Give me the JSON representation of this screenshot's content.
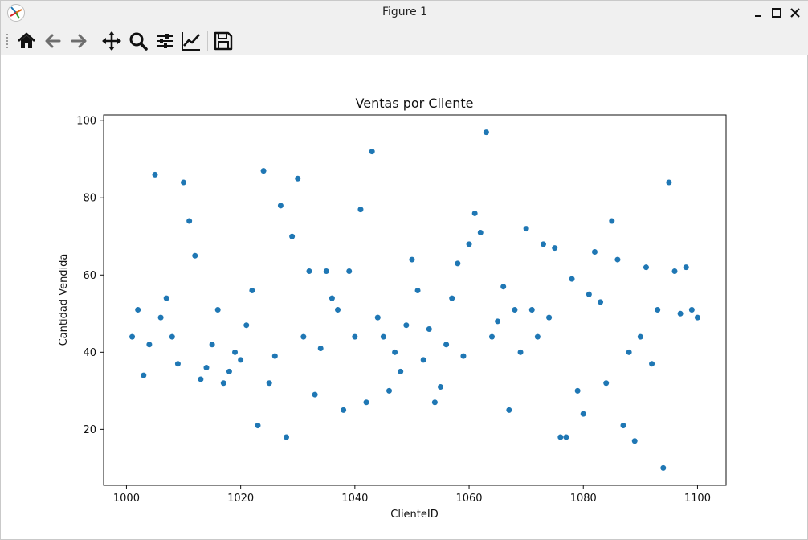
{
  "window": {
    "title": "Figure 1"
  },
  "toolbar": {
    "tools": [
      "home-icon",
      "back-arrow-icon",
      "forward-arrow-icon",
      "pan-move-icon",
      "zoom-magnifier-icon",
      "subplots-sliders-icon",
      "edit-axes-lines-icon",
      "save-floppy-icon"
    ]
  },
  "colors": {
    "point": "#1f77b4",
    "toolbar_bg": "#f0f0f0"
  },
  "chart_data": {
    "type": "scatter",
    "title": "Ventas por Cliente",
    "xlabel": "ClienteID",
    "ylabel": "Cantidad Vendida",
    "xlim": [
      996,
      1105
    ],
    "ylim": [
      5.5,
      101.5
    ],
    "xticks": [
      "1000",
      "1020",
      "1040",
      "1060",
      "1080",
      "1100"
    ],
    "yticks": [
      "20",
      "40",
      "60",
      "80",
      "100"
    ],
    "grid": false,
    "x": [
      1001,
      1002,
      1003,
      1004,
      1005,
      1006,
      1007,
      1008,
      1009,
      1010,
      1011,
      1012,
      1013,
      1014,
      1015,
      1016,
      1017,
      1018,
      1019,
      1020,
      1021,
      1022,
      1023,
      1024,
      1025,
      1026,
      1027,
      1028,
      1029,
      1030,
      1031,
      1032,
      1033,
      1034,
      1035,
      1036,
      1037,
      1038,
      1039,
      1040,
      1041,
      1042,
      1043,
      1044,
      1045,
      1046,
      1047,
      1048,
      1049,
      1050,
      1051,
      1052,
      1053,
      1054,
      1055,
      1056,
      1057,
      1058,
      1059,
      1060,
      1061,
      1062,
      1063,
      1064,
      1065,
      1066,
      1067,
      1068,
      1069,
      1070,
      1071,
      1072,
      1073,
      1074,
      1075,
      1076,
      1077,
      1078,
      1079,
      1080,
      1081,
      1082,
      1083,
      1084,
      1085,
      1086,
      1087,
      1088,
      1089,
      1090,
      1091,
      1092,
      1093,
      1094,
      1095,
      1096,
      1097,
      1098,
      1099,
      1100
    ],
    "y": [
      44,
      51,
      34,
      42,
      86,
      49,
      54,
      44,
      37,
      84,
      74,
      65,
      33,
      36,
      42,
      51,
      32,
      35,
      40,
      38,
      47,
      56,
      21,
      87,
      32,
      39,
      78,
      18,
      70,
      85,
      44,
      61,
      29,
      41,
      61,
      54,
      51,
      25,
      61,
      44,
      77,
      27,
      92,
      49,
      44,
      30,
      40,
      35,
      47,
      64,
      56,
      38,
      46,
      27,
      31,
      42,
      54,
      63,
      39,
      68,
      76,
      71,
      97,
      44,
      48,
      57,
      25,
      51,
      40,
      72,
      51,
      44,
      68,
      49,
      67,
      18,
      18,
      59,
      30,
      24,
      55,
      66,
      53,
      32,
      74,
      64,
      21,
      40,
      17,
      44,
      62,
      37,
      51,
      10,
      84,
      61,
      50,
      62,
      51,
      49
    ]
  }
}
